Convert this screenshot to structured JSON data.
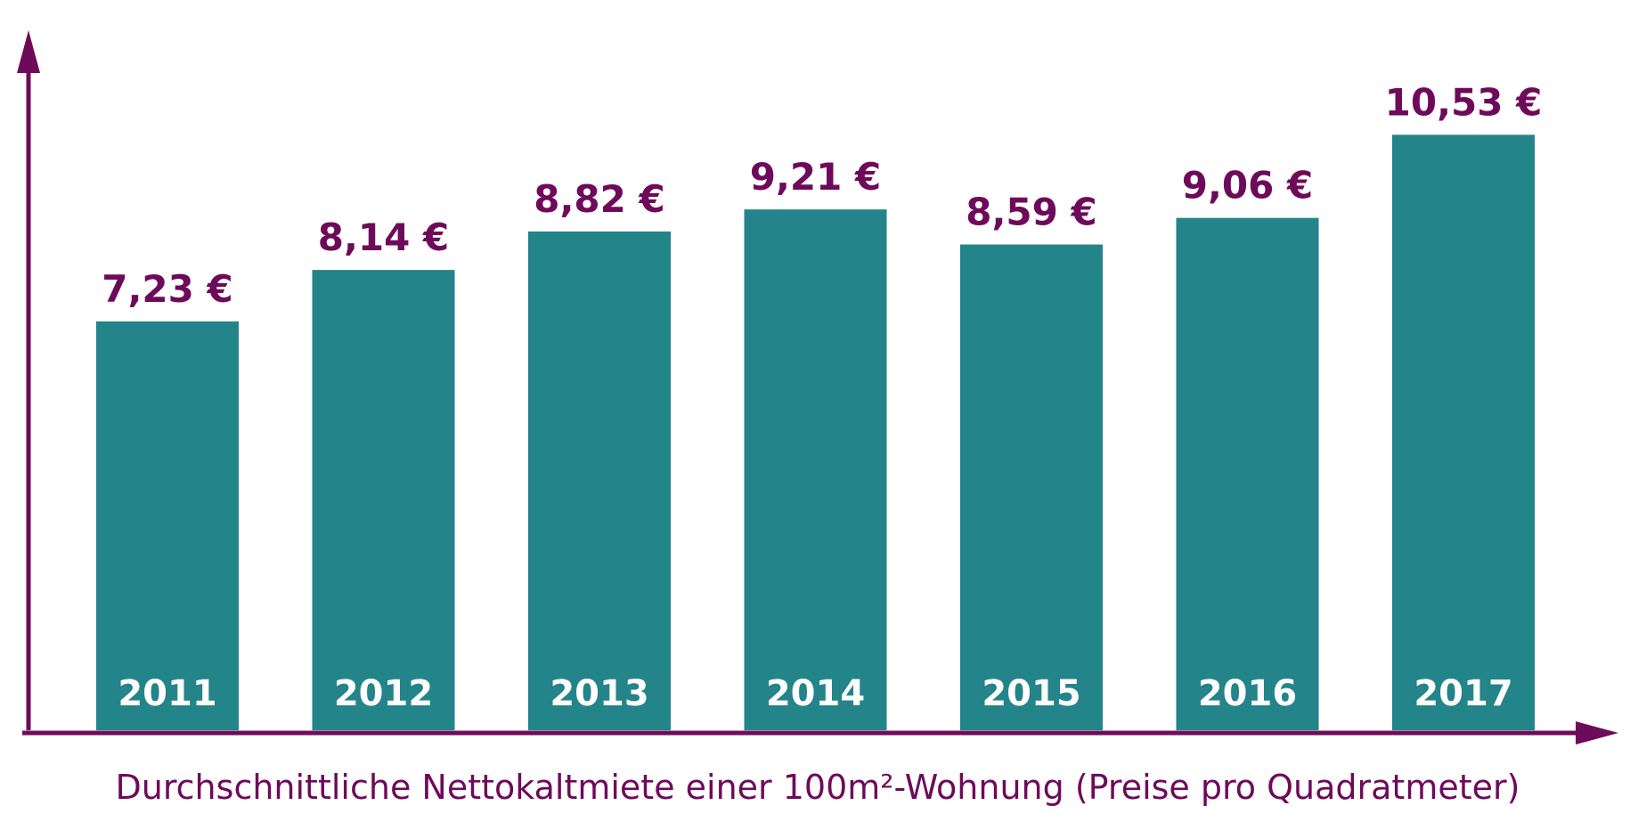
{
  "chart_data": {
    "type": "bar",
    "categories": [
      "2011",
      "2012",
      "2013",
      "2014",
      "2015",
      "2016",
      "2017"
    ],
    "values": [
      7.23,
      8.14,
      8.82,
      9.21,
      8.59,
      9.06,
      10.53
    ],
    "value_labels": [
      "7,23 €",
      "8,14 €",
      "8,82 €",
      "9,21 €",
      "8,59 €",
      "9,06 €",
      "10,53 €"
    ],
    "title": "",
    "xlabel": "Durchschnittliche Nettokaltmiete einer 100m²-Wohnung (Preise pro Quadratmeter)",
    "ylabel": "",
    "grid": false,
    "legend": "none",
    "colors": {
      "bar": "#238489",
      "axis": "#6e0a5a",
      "value_text": "#6e0a5a",
      "category_text": "#ffffff",
      "xlabel_text": "#6e0a5a"
    }
  }
}
